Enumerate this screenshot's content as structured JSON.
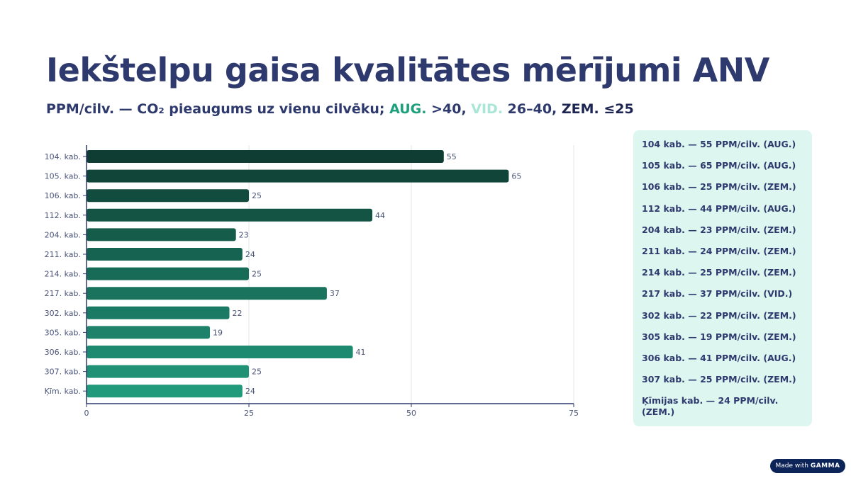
{
  "title": "Iekštelpu gaisa kvalitātes mērījumi ANV",
  "subtitle": {
    "prefix": "PPM/cilv. — CO₂ pieaugums uz vienu cilvēku; ",
    "aug": "AUG.",
    "aug_range": " >40, ",
    "vid": "VID.",
    "vid_range": " 26–40, ",
    "zem": "ZEM. ≤25"
  },
  "chart_data": {
    "type": "bar",
    "orientation": "horizontal",
    "categories": [
      "104. kab.",
      "105. kab.",
      "106. kab.",
      "112. kab.",
      "204. kab.",
      "211. kab.",
      "214. kab.",
      "217. kab.",
      "302. kab.",
      "305. kab.",
      "306. kab.",
      "307. kab.",
      "Ķīm. kab."
    ],
    "values": [
      55,
      65,
      25,
      44,
      23,
      24,
      25,
      37,
      22,
      19,
      41,
      25,
      24
    ],
    "xlim": [
      0,
      75
    ],
    "xticks": [
      "0",
      "25",
      "50",
      "75"
    ],
    "grid": true,
    "colors": {
      "start": "#0f3d33",
      "end": "#21997b"
    }
  },
  "panel": [
    "104 kab. — 55 PPM/cilv. (AUG.)",
    "105 kab. — 65 PPM/cilv. (AUG.)",
    "106 kab. — 25 PPM/cilv. (ZEM.)",
    "112 kab. — 44 PPM/cilv. (AUG.)",
    "204 kab. — 23 PPM/cilv. (ZEM.)",
    "211 kab. — 24 PPM/cilv. (ZEM.)",
    "214 kab. — 25 PPM/cilv. (ZEM.)",
    "217 kab. — 37 PPM/cilv. (VID.)",
    "302 kab. — 22 PPM/cilv. (ZEM.)",
    "305 kab. — 19 PPM/cilv. (ZEM.)",
    "306 kab. — 41 PPM/cilv. (AUG.)",
    "307 kab. — 25 PPM/cilv. (ZEM.)",
    "Ķīmijas kab. — 24 PPM/cilv. (ZEM.)"
  ],
  "badge": {
    "prefix": "Made with ",
    "brand": "GAMMA"
  }
}
